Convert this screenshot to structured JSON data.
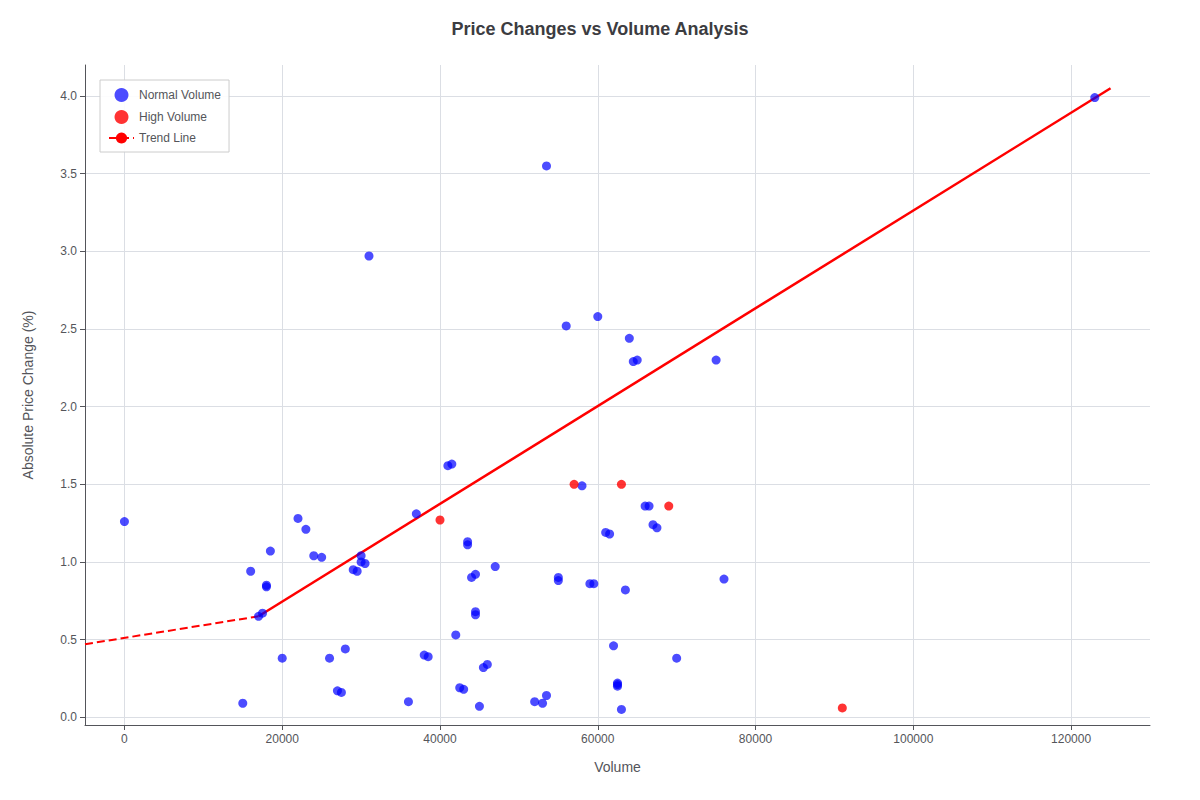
{
  "chart_data": {
    "type": "scatter",
    "title": "Price Changes vs Volume Analysis",
    "xlabel": "Volume",
    "ylabel": "Absolute Price Change (%)",
    "xlim": [
      -5000,
      130000
    ],
    "xticks": [
      0,
      20000,
      40000,
      60000,
      80000,
      100000,
      120000
    ],
    "ylim": [
      -0.05,
      4.2
    ],
    "yticks": [
      {
        "value": 0,
        "label": "0.0"
      },
      0.5,
      {
        "value": 1,
        "label": "1.0"
      },
      1.5,
      {
        "value": 2,
        "label": "2.0"
      },
      2.5,
      {
        "value": 3,
        "label": "3.0"
      },
      3.5,
      {
        "value": 4,
        "label": "4.0"
      }
    ],
    "grid": true,
    "legend": "upper left",
    "series": [
      {
        "name": "Normal Volume",
        "type": "scatter",
        "marker": "circle",
        "color": "blue",
        "x": [
          0,
          15000,
          16000,
          17000,
          17500,
          18000,
          18000,
          18500,
          20000,
          22000,
          23000,
          24000,
          25000,
          26000,
          27000,
          27500,
          28000,
          29000,
          29500,
          30000,
          30000,
          30500,
          31000,
          36000,
          37000,
          38000,
          38500,
          41000,
          41500,
          42000,
          42500,
          43000,
          43500,
          43500,
          44000,
          44500,
          44500,
          44500,
          45000,
          45500,
          46000,
          47000,
          52000,
          53000,
          53500,
          53500,
          55000,
          55000,
          56000,
          58000,
          59000,
          59500,
          60000,
          61000,
          61500,
          62000,
          62500,
          62500,
          62500,
          63000,
          63500,
          64000,
          64500,
          65000,
          66000,
          66500,
          67000,
          67500,
          70000,
          75000,
          76000,
          123000
        ],
        "values": [
          1.26,
          0.09,
          0.94,
          0.65,
          0.67,
          0.84,
          0.85,
          1.07,
          0.38,
          1.28,
          1.21,
          1.04,
          1.03,
          0.38,
          0.17,
          0.16,
          0.44,
          0.95,
          0.94,
          1.04,
          1.0,
          0.99,
          2.97,
          0.1,
          1.31,
          0.4,
          0.39,
          1.62,
          1.63,
          0.53,
          0.19,
          0.18,
          1.11,
          1.13,
          0.9,
          0.92,
          0.66,
          0.68,
          0.07,
          0.32,
          0.34,
          0.97,
          0.1,
          0.09,
          0.14,
          3.55,
          0.88,
          0.9,
          2.52,
          1.49,
          0.86,
          0.86,
          2.58,
          1.19,
          1.18,
          0.46,
          0.21,
          0.22,
          0.2,
          0.05,
          0.82,
          2.44,
          2.29,
          2.3,
          1.36,
          1.36,
          1.24,
          1.22,
          0.38,
          2.3,
          0.89,
          3.99
        ]
      },
      {
        "name": "High Volume",
        "type": "scatter",
        "marker": "circle",
        "color": "red",
        "x": [
          40000,
          57000,
          63000,
          69000,
          91000
        ],
        "values": [
          1.27,
          1.5,
          1.5,
          1.36,
          0.06
        ]
      },
      {
        "type": "line",
        "line_style": "solid",
        "color": "red",
        "x": [
          17000,
          125000
        ],
        "values": [
          0.65,
          4.05
        ]
      },
      {
        "name": "Trend Line",
        "type": "line",
        "line_style": "dashed",
        "color": "red",
        "x": [
          -5000,
          17000
        ],
        "values": [
          0.47,
          0.65
        ]
      }
    ]
  }
}
